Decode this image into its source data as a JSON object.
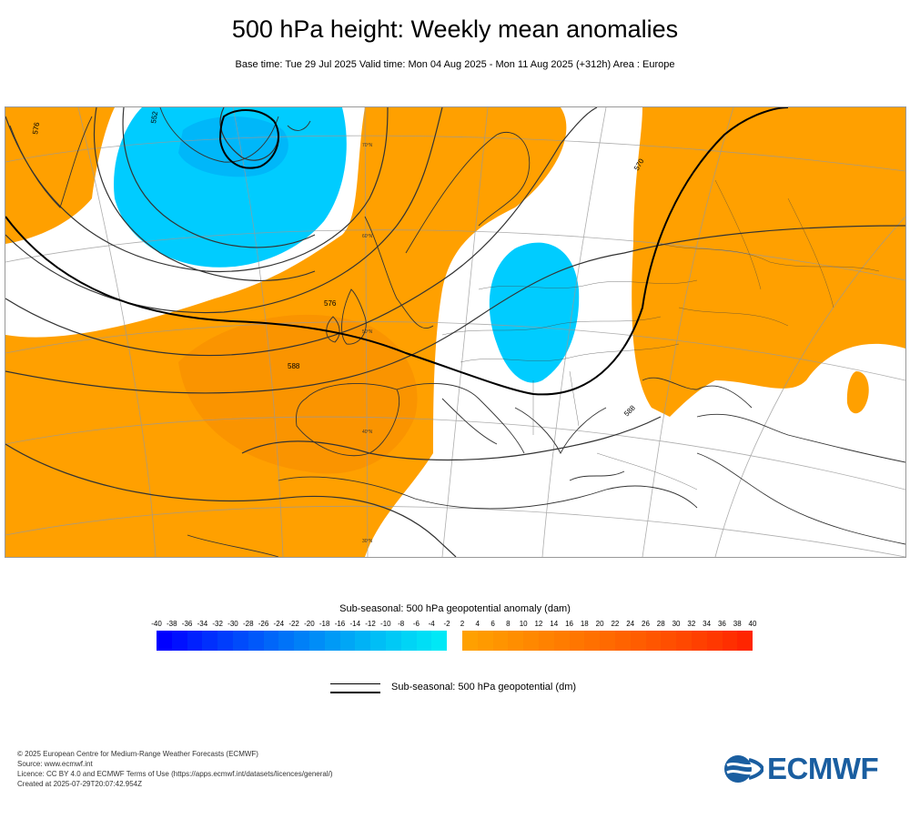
{
  "title": "500 hPa height: Weekly mean anomalies",
  "subtitle": "Base time: Tue 29 Jul 2025 Valid time: Mon 04 Aug 2025 - Mon 11 Aug 2025 (+312h) Area : Europe",
  "map": {
    "contour_labels": [
      "552",
      "570",
      "576",
      "588",
      "576",
      "588"
    ],
    "lat_labels": [
      "50°N",
      "40°N",
      "30°N",
      "60°N",
      "70°N"
    ],
    "colors": {
      "negative_anomaly": "#00ccff",
      "strong_negative_anomaly": "#00a9f5",
      "positive_anomaly": "#ffa000",
      "strong_positive_anomaly": "#f58a00",
      "land_outline": "#333333",
      "grid": "#999999"
    }
  },
  "colorbar": {
    "title": "Sub-seasonal: 500 hPa geopotential anomaly (dam)",
    "ticks": [
      "-40",
      "-38",
      "-36",
      "-34",
      "-32",
      "-30",
      "-28",
      "-26",
      "-24",
      "-22",
      "-20",
      "-18",
      "-16",
      "-14",
      "-12",
      "-10",
      "-8",
      "-6",
      "-4",
      "-2",
      "2",
      "4",
      "6",
      "8",
      "10",
      "12",
      "14",
      "16",
      "18",
      "20",
      "22",
      "24",
      "26",
      "28",
      "30",
      "32",
      "34",
      "36",
      "38",
      "40"
    ],
    "negative_colors": [
      "#0000ff",
      "#0010ff",
      "#0020fe",
      "#002ffd",
      "#003dfc",
      "#004bfb",
      "#0058fa",
      "#0066f9",
      "#0073f8",
      "#0080f7",
      "#008df7",
      "#009af6",
      "#00a6f6",
      "#00b2f6",
      "#00bef6",
      "#00c9f6",
      "#00d4f6",
      "#00def6",
      "#00e8f6"
    ],
    "positive_colors": [
      "#ffa000",
      "#ff9a00",
      "#ff9400",
      "#ff8e00",
      "#ff8800",
      "#ff8200",
      "#ff7c00",
      "#ff7600",
      "#ff7000",
      "#ff6a00",
      "#ff6300",
      "#ff5d00",
      "#ff5600",
      "#ff4f00",
      "#ff4800",
      "#ff4000",
      "#ff3800",
      "#ff2f00",
      "#ff2500"
    ]
  },
  "legend": {
    "label": "Sub-seasonal: 500 hPa geopotential (dm)"
  },
  "footer": {
    "lines": [
      "© 2025 European Centre for Medium-Range Weather Forecasts (ECMWF)",
      "Source: www.ecmwf.int",
      "Licence: CC BY 4.0 and ECMWF Terms of Use (https://apps.ecmwf.int/datasets/licences/general/)",
      "Created at 2025-07-29T20:07:42.954Z"
    ]
  },
  "logo": {
    "text": "ECMWF"
  }
}
